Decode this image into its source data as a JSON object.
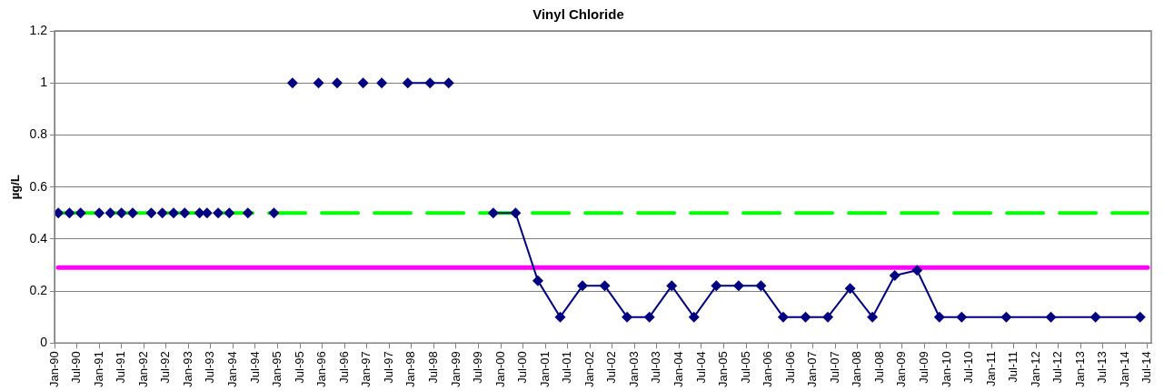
{
  "chart_data": {
    "type": "line",
    "title": "Vinyl Chloride",
    "ylabel": "µg/L",
    "series": [
      {
        "type": "scatter",
        "color": "#000080",
        "x": [
          "1990-02",
          "1990-05",
          "1990-08",
          "1991-01",
          "1991-04",
          "1991-07",
          "1991-10",
          "1992-03",
          "1992-06",
          "1992-09",
          "1992-12",
          "1993-04",
          "1993-06",
          "1993-09",
          "1993-12",
          "1994-05",
          "1994-12",
          "1995-05",
          "1995-12",
          "1996-05",
          "1996-12",
          "1997-05"
        ],
        "values": [
          0.5,
          0.5,
          0.5,
          0.5,
          0.5,
          0.5,
          0.5,
          0.5,
          0.5,
          0.5,
          0.5,
          0.5,
          0.5,
          0.5,
          0.5,
          0.5,
          0.5,
          1,
          1,
          1,
          1,
          1
        ]
      },
      {
        "color": "#000080",
        "x": [
          "1997-12",
          "1998-06",
          "1998-11"
        ],
        "values": [
          1,
          1,
          1
        ]
      },
      {
        "color": "#000080",
        "x": [
          "1999-11",
          "2000-05",
          "2000-11",
          "2001-05",
          "2001-11",
          "2002-05",
          "2002-11",
          "2003-05",
          "2003-11",
          "2004-05",
          "2004-11",
          "2005-05",
          "2005-11",
          "2006-05",
          "2006-11",
          "2007-05",
          "2007-11",
          "2008-05",
          "2008-11",
          "2009-05",
          "2009-11",
          "2010-05",
          "2011-05",
          "2012-05",
          "2013-05",
          "2014-05"
        ],
        "values": [
          0.5,
          0.5,
          0.24,
          0.1,
          0.22,
          0.22,
          0.1,
          0.1,
          0.22,
          0.1,
          0.22,
          0.22,
          0.22,
          0.1,
          0.1,
          0.1,
          0.21,
          0.1,
          0.26,
          0.28,
          0.1,
          0.1,
          0.1,
          0.1,
          0.1,
          0.1
        ]
      }
    ],
    "marker": "diamond",
    "line_style": "solid",
    "xlim": [
      "1990-01",
      "2014-08"
    ],
    "xticks": [
      {
        "value": "1990-01",
        "label": "Jan-90"
      },
      {
        "value": "1990-07",
        "label": "Jul-90"
      },
      {
        "value": "1991-01",
        "label": "Jan-91"
      },
      {
        "value": "1991-07",
        "label": "Jul-91"
      },
      {
        "value": "1992-01",
        "label": "Jan-92"
      },
      {
        "value": "1992-07",
        "label": "Jul-92"
      },
      {
        "value": "1993-01",
        "label": "Jan-93"
      },
      {
        "value": "1993-07",
        "label": "Jul-93"
      },
      {
        "value": "1994-01",
        "label": "Jan-94"
      },
      {
        "value": "1994-07",
        "label": "Jul-94"
      },
      {
        "value": "1995-01",
        "label": "Jan-95"
      },
      {
        "value": "1995-07",
        "label": "Jul-95"
      },
      {
        "value": "1996-01",
        "label": "Jan-96"
      },
      {
        "value": "1996-07",
        "label": "Jul-96"
      },
      {
        "value": "1997-01",
        "label": "Jan-97"
      },
      {
        "value": "1997-07",
        "label": "Jul-97"
      },
      {
        "value": "1998-01",
        "label": "Jan-98"
      },
      {
        "value": "1998-07",
        "label": "Jul-98"
      },
      {
        "value": "1999-01",
        "label": "Jan-99"
      },
      {
        "value": "1999-07",
        "label": "Jul-99"
      },
      {
        "value": "2000-01",
        "label": "Jan-00"
      },
      {
        "value": "2000-07",
        "label": "Jul-00"
      },
      {
        "value": "2001-01",
        "label": "Jan-01"
      },
      {
        "value": "2001-07",
        "label": "Jul-01"
      },
      {
        "value": "2002-01",
        "label": "Jan-02"
      },
      {
        "value": "2002-07",
        "label": "Jul-02"
      },
      {
        "value": "2003-01",
        "label": "Jan-03"
      },
      {
        "value": "2003-07",
        "label": "Jul-03"
      },
      {
        "value": "2004-01",
        "label": "Jan-04"
      },
      {
        "value": "2004-07",
        "label": "Jul-04"
      },
      {
        "value": "2005-01",
        "label": "Jan-05"
      },
      {
        "value": "2005-07",
        "label": "Jul-05"
      },
      {
        "value": "2006-01",
        "label": "Jan-06"
      },
      {
        "value": "2006-07",
        "label": "Jul-06"
      },
      {
        "value": "2007-01",
        "label": "Jan-07"
      },
      {
        "value": "2007-07",
        "label": "Jul-07"
      },
      {
        "value": "2008-01",
        "label": "Jan-08"
      },
      {
        "value": "2008-07",
        "label": "Jul-08"
      },
      {
        "value": "2009-01",
        "label": "Jan-09"
      },
      {
        "value": "2009-07",
        "label": "Jul-09"
      },
      {
        "value": "2010-01",
        "label": "Jan-10"
      },
      {
        "value": "2010-07",
        "label": "Jul-10"
      },
      {
        "value": "2011-01",
        "label": "Jan-11"
      },
      {
        "value": "2011-07",
        "label": "Jul-11"
      },
      {
        "value": "2012-01",
        "label": "Jan-12"
      },
      {
        "value": "2012-07",
        "label": "Jul-12"
      },
      {
        "value": "2013-01",
        "label": "Jan-13"
      },
      {
        "value": "2013-07",
        "label": "Jul-13"
      },
      {
        "value": "2014-01",
        "label": "Jan-14"
      },
      {
        "value": "2014-07",
        "label": "Jul-14"
      }
    ],
    "ylim": [
      0,
      1.2
    ],
    "yticks": [
      0,
      0.2,
      0.4,
      0.6,
      0.8,
      1,
      1.2
    ],
    "grid": "y",
    "legend": false,
    "ref_lines": [
      {
        "axis": "y",
        "value": 0.5,
        "color": "#00ff00",
        "line_style": "dashed"
      },
      {
        "axis": "y",
        "value": 0.29,
        "color": "#ff00ff",
        "line_style": "solid"
      }
    ]
  }
}
